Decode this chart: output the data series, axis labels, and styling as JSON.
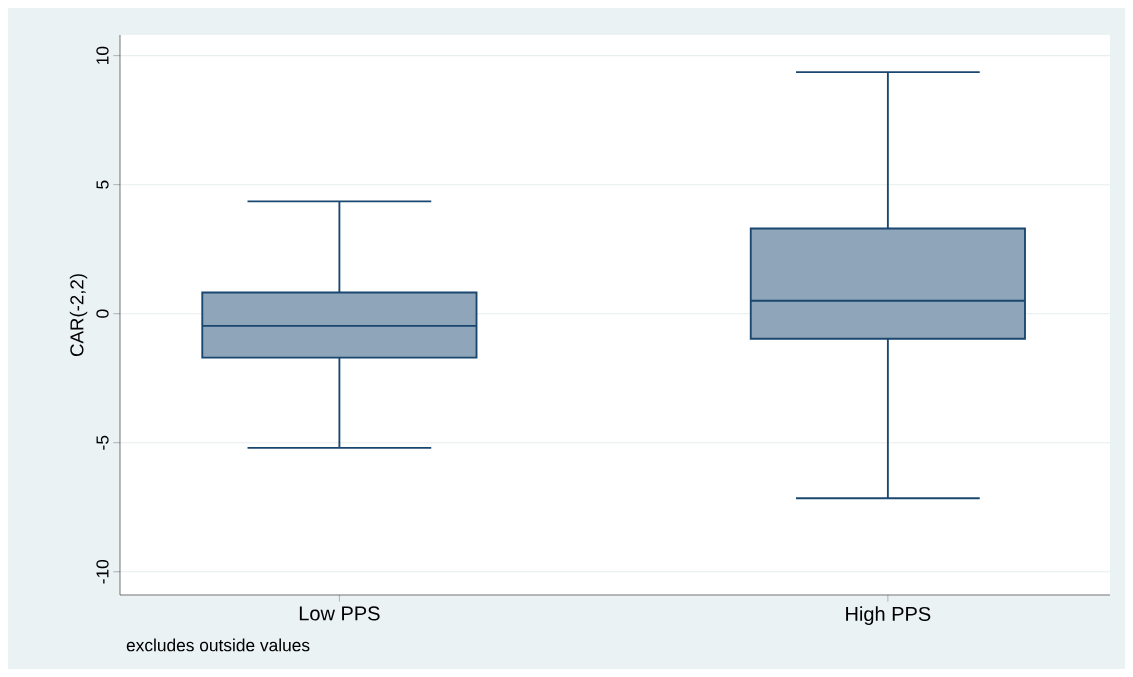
{
  "chart_data": {
    "type": "box",
    "ylabel": "CAR(-2,2)",
    "categories": [
      "Low PPS",
      "High PPS"
    ],
    "color": "#8fa5b9",
    "boxes": [
      {
        "low": -5.2,
        "q1": -1.7,
        "median": -0.47,
        "q3": 0.82,
        "high": 4.35
      },
      {
        "low": -7.15,
        "q1": -0.97,
        "median": 0.5,
        "q3": 3.3,
        "high": 9.36
      }
    ],
    "ylim": [
      -10.9,
      10.8
    ],
    "yticks": [
      -10,
      -5,
      0,
      5,
      10
    ],
    "grid": "y",
    "annotations": [
      "excludes outside values"
    ]
  }
}
